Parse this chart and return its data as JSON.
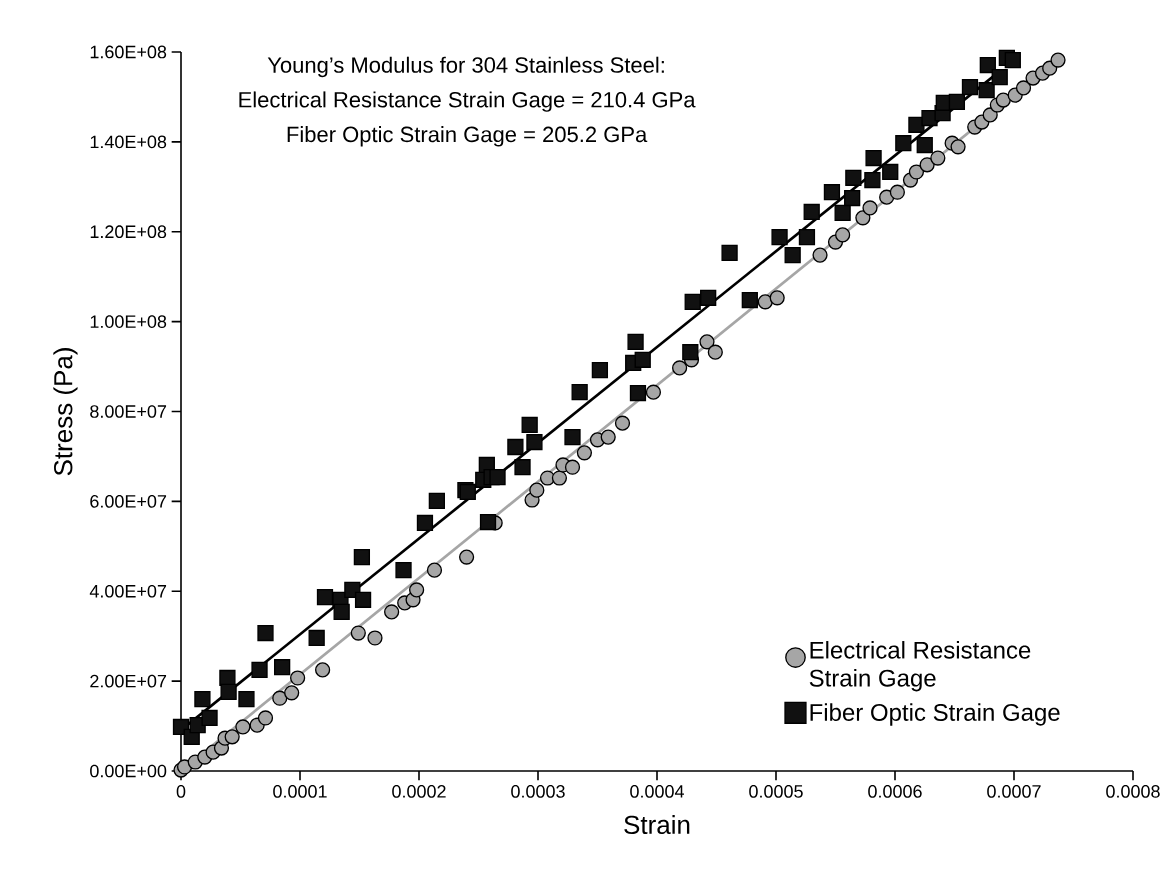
{
  "chart_data": {
    "type": "scatter",
    "xlabel": "Strain",
    "ylabel": "Stress (Pa)",
    "annotations": [
      "Young’s Modulus for 304 Stainless Steel:",
      "Electrical Resistance Strain Gage = 210.4 GPa",
      "Fiber Optic Strain Gage = 205.2 GPa"
    ],
    "xlim": [
      0,
      0.0008
    ],
    "ylim": [
      0,
      160000000.0
    ],
    "xticks": [
      0,
      0.0001,
      0.0002,
      0.0003,
      0.0004,
      0.0005,
      0.0006,
      0.0007,
      0.0008
    ],
    "yticks": [
      {
        "value": 0,
        "label": "0.00E+00"
      },
      {
        "value": 20000000.0,
        "label": "2.00E+07"
      },
      {
        "value": 40000000.0,
        "label": "4.00E+07"
      },
      {
        "value": 60000000.0,
        "label": "6.00E+07"
      },
      {
        "value": 80000000.0,
        "label": "8.00E+07"
      },
      {
        "value": 100000000.0,
        "label": "1.00E+08"
      },
      {
        "value": 120000000.0,
        "label": "1.20E+08"
      },
      {
        "value": 140000000.0,
        "label": "1.40E+08"
      },
      {
        "value": 160000000.0,
        "label": "1.60E+08"
      }
    ],
    "grid": false,
    "legend": "bottom right",
    "series": [
      {
        "name": "Electrical Resistance Strain Gage",
        "marker": "circle",
        "color": "#a6a6a6",
        "x": [
          0,
          3e-06,
          1.2e-05,
          2e-05,
          2.7e-05,
          3.4e-05,
          3.7e-05,
          4.3e-05,
          5.2e-05,
          6.4e-05,
          7.1e-05,
          8.3e-05,
          9.3e-05,
          9.8e-05,
          0.000119,
          0.000149,
          0.000163,
          0.000177,
          0.000188,
          0.000195,
          0.000198,
          0.000213,
          0.00024,
          0.000264,
          0.000295,
          0.000299,
          0.000308,
          0.000318,
          0.000321,
          0.000329,
          0.000339,
          0.00035,
          0.000359,
          0.000371,
          0.000397,
          0.000419,
          0.000429,
          0.000442,
          0.000449,
          0.000491,
          0.000501,
          0.000537,
          0.00055,
          0.000556,
          0.000573,
          0.000579,
          0.000593,
          0.000602,
          0.000613,
          0.000618,
          0.000627,
          0.000636,
          0.000648,
          0.000653,
          0.000667,
          0.000673,
          0.00068,
          0.000686,
          0.000691,
          0.000701,
          0.000708,
          0.000716,
          0.000724,
          0.00073,
          0.000737
        ],
        "values": [
          200000.0,
          900000.0,
          2000000.0,
          3100000.0,
          4200000.0,
          5100000.0,
          7300000.0,
          7600000.0,
          9800000.0,
          10200000.0,
          11800000.0,
          16200000.0,
          17400000.0,
          20700000.0,
          22500000.0,
          30700000.0,
          29600000.0,
          35400000.0,
          37400000.0,
          38100000.0,
          40300000.0,
          44700000.0,
          47600000.0,
          55200000.0,
          60300000.0,
          62500000.0,
          65200000.0,
          65200000.0,
          68100000.0,
          67600000.0,
          70800000.0,
          73700000.0,
          74300000.0,
          77400000.0,
          84300000.0,
          89700000.0,
          91500000.0,
          95500000.0,
          93200000.0,
          104400000.0,
          105300000.0,
          114800000.0,
          117700000.0,
          119300000.0,
          123100000.0,
          125300000.0,
          127700000.0,
          128800000.0,
          131500000.0,
          133300000.0,
          134900000.0,
          136400000.0,
          139700000.0,
          138900000.0,
          143300000.0,
          144400000.0,
          146000000.0,
          148200000.0,
          149300000.0,
          150400000.0,
          152000000.0,
          154200000.0,
          155300000.0,
          156400000.0,
          158200000.0
        ]
      },
      {
        "name": "Fiber Optic Strain Gage",
        "marker": "square",
        "color": "#111111",
        "x": [
          0,
          9e-06,
          1.4e-05,
          1.8e-05,
          2.4e-05,
          3.9e-05,
          4e-05,
          5.5e-05,
          6.6e-05,
          7.1e-05,
          8.5e-05,
          0.000114,
          0.000121,
          0.000134,
          0.000135,
          0.000144,
          0.000152,
          0.000153,
          0.000187,
          0.000205,
          0.000215,
          0.000239,
          0.000241,
          0.000254,
          0.000257,
          0.000258,
          0.000261,
          0.000266,
          0.000281,
          0.000287,
          0.000293,
          0.000297,
          0.000329,
          0.000335,
          0.000352,
          0.00038,
          0.000382,
          0.000384,
          0.000388,
          0.000428,
          0.00043,
          0.000443,
          0.000461,
          0.000478,
          0.000503,
          0.000514,
          0.000526,
          0.00053,
          0.000547,
          0.000556,
          0.000564,
          0.000565,
          0.000581,
          0.000582,
          0.000596,
          0.000607,
          0.000618,
          0.000625,
          0.000629,
          0.00064,
          0.000641,
          0.000652,
          0.000663,
          0.000677,
          0.000678,
          0.000688,
          0.000694,
          0.000699
        ],
        "values": [
          9800000.0,
          7600000.0,
          10200000.0,
          16000000.0,
          11800000.0,
          20700000.0,
          17600000.0,
          16000000.0,
          22500000.0,
          30700000.0,
          23100000.0,
          29600000.0,
          38700000.0,
          38100000.0,
          35400000.0,
          40300000.0,
          47600000.0,
          38100000.0,
          44700000.0,
          55200000.0,
          60100000.0,
          62500000.0,
          62100000.0,
          64800000.0,
          68100000.0,
          55400000.0,
          65400000.0,
          65400000.0,
          72100000.0,
          67600000.0,
          77000000.0,
          73200000.0,
          74300000.0,
          84300000.0,
          89200000.0,
          90800000.0,
          95500000.0,
          84100000.0,
          91500000.0,
          93200000.0,
          104400000.0,
          105300000.0,
          115300000.0,
          104800000.0,
          118800000.0,
          114800000.0,
          118800000.0,
          124400000.0,
          128800000.0,
          124200000.0,
          127500000.0,
          132000000.0,
          131500000.0,
          136400000.0,
          133300000.0,
          139700000.0,
          143800000.0,
          139300000.0,
          145300000.0,
          146400000.0,
          148700000.0,
          148900000.0,
          152200000.0,
          151500000.0,
          157100000.0,
          154400000.0,
          158700000.0,
          158200000.0
        ]
      },
      {
        "type": "line",
        "marker": "none",
        "color": "#a6a6a6",
        "x": [
          0,
          0.000737
        ],
        "values": [
          0,
          158200000.0
        ]
      },
      {
        "type": "line",
        "marker": "none",
        "color": "#000000",
        "x": [
          0,
          0.000686
        ],
        "values": [
          9100000.0,
          155300000.0
        ]
      }
    ]
  }
}
